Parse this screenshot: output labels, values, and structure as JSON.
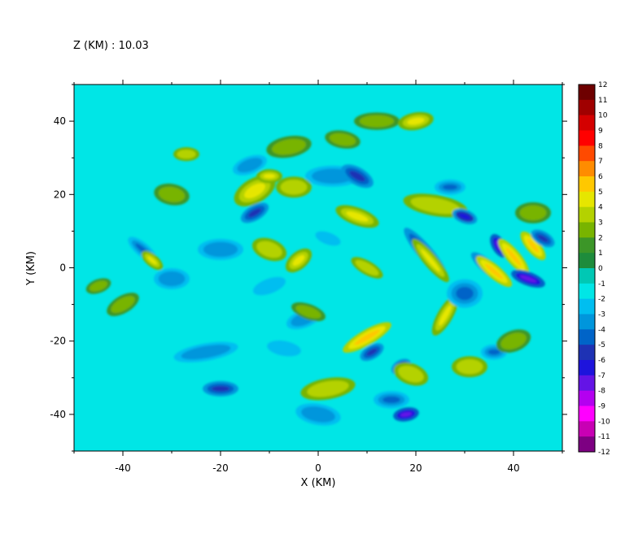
{
  "chart_data": {
    "type": "heatmap",
    "title": "Z (KM) : 10.03",
    "xlabel": "X (KM)",
    "ylabel": "Y (KM)",
    "xlim": [
      -50,
      50
    ],
    "ylim": [
      -50,
      50
    ],
    "x_ticks": [
      -40,
      -20,
      0,
      20,
      40
    ],
    "y_ticks": [
      -40,
      -20,
      0,
      20,
      40
    ],
    "x_tick_labels": [
      "-40",
      "-20",
      "0",
      "20",
      "40"
    ],
    "y_tick_labels": [
      "-40",
      "-20",
      "0",
      "20",
      "40"
    ],
    "colorbar": {
      "levels": [
        12,
        11,
        10,
        9,
        8,
        7,
        6,
        5,
        4,
        3,
        2,
        1,
        0,
        -1,
        -2,
        -3,
        -4,
        -5,
        -6,
        -7,
        -8,
        -9,
        -10,
        -11,
        -12
      ],
      "labels": [
        "12",
        "11",
        "10",
        "9",
        "8",
        "7",
        "6",
        "5",
        "4",
        "3",
        "2",
        "1",
        "0",
        "-1",
        "-2",
        "-3",
        "-4",
        "-5",
        "-6",
        "-7",
        "-8",
        "-9",
        "-10",
        "-11",
        "-12"
      ],
      "colors": [
        "#6e0000",
        "#a00000",
        "#d40000",
        "#ff0000",
        "#ff4a00",
        "#ff8c00",
        "#ffc800",
        "#e6e600",
        "#b4d200",
        "#78b400",
        "#3c9628",
        "#1e8c3c",
        "#00a078",
        "#00c8b4",
        "#00e6e6",
        "#00bef0",
        "#0096dc",
        "#0064c8",
        "#1e32b4",
        "#1e14dc",
        "#6414e6",
        "#b400f0",
        "#ff00ff",
        "#c800b4",
        "#7d0082",
        "#50005a"
      ]
    },
    "background_value": 0,
    "features": [
      {
        "x": -36,
        "y": 5,
        "rx": 3,
        "ry": 1,
        "angle": -40,
        "value": -5
      },
      {
        "x": -34,
        "y": 2,
        "rx": 2,
        "ry": 0.8,
        "angle": -40,
        "value": 5
      },
      {
        "x": -45,
        "y": -5,
        "rx": 2,
        "ry": 1,
        "angle": 20,
        "value": 3
      },
      {
        "x": -40,
        "y": -10,
        "rx": 3,
        "ry": 1.5,
        "angle": 30,
        "value": 3
      },
      {
        "x": -30,
        "y": 20,
        "rx": 3,
        "ry": 2,
        "angle": -10,
        "value": 3
      },
      {
        "x": -27,
        "y": 31,
        "rx": 2,
        "ry": 1,
        "angle": 0,
        "value": 4
      },
      {
        "x": -23,
        "y": -23,
        "rx": 6,
        "ry": 1.5,
        "angle": 10,
        "value": -4
      },
      {
        "x": -20,
        "y": 5,
        "rx": 4,
        "ry": 2,
        "angle": 0,
        "value": -4
      },
      {
        "x": -14,
        "y": 28,
        "rx": 3,
        "ry": 1.5,
        "angle": 20,
        "value": -4
      },
      {
        "x": -13,
        "y": 21,
        "rx": 4,
        "ry": 2.5,
        "angle": 30,
        "value": 5
      },
      {
        "x": -13,
        "y": 15,
        "rx": 2.5,
        "ry": 1.2,
        "angle": 30,
        "value": -6
      },
      {
        "x": -10,
        "y": 5,
        "rx": 3,
        "ry": 2,
        "angle": -20,
        "value": 4
      },
      {
        "x": -10,
        "y": -5,
        "rx": 4,
        "ry": 2,
        "angle": 20,
        "value": -3
      },
      {
        "x": -10,
        "y": 25,
        "rx": 2,
        "ry": 1,
        "angle": 0,
        "value": 5
      },
      {
        "x": -7,
        "y": -22,
        "rx": 4,
        "ry": 2,
        "angle": -10,
        "value": -3
      },
      {
        "x": -6,
        "y": 33,
        "rx": 4,
        "ry": 2,
        "angle": 10,
        "value": 3
      },
      {
        "x": -5,
        "y": 22,
        "rx": 3,
        "ry": 2,
        "angle": 0,
        "value": 4
      },
      {
        "x": -4,
        "y": 2,
        "rx": 2.5,
        "ry": 1.5,
        "angle": 40,
        "value": 5
      },
      {
        "x": -3,
        "y": -14,
        "rx": 3,
        "ry": 1.5,
        "angle": 20,
        "value": -4
      },
      {
        "x": 0,
        "y": -40,
        "rx": 4,
        "ry": 2,
        "angle": -10,
        "value": -4
      },
      {
        "x": 2,
        "y": -33,
        "rx": 5,
        "ry": 2,
        "angle": 10,
        "value": 4
      },
      {
        "x": 3,
        "y": 25,
        "rx": 5,
        "ry": 2,
        "angle": 0,
        "value": -4
      },
      {
        "x": 5,
        "y": 35,
        "rx": 3,
        "ry": 1.5,
        "angle": -10,
        "value": 3
      },
      {
        "x": 8,
        "y": 25,
        "rx": 3,
        "ry": 1.5,
        "angle": -30,
        "value": -6
      },
      {
        "x": 8,
        "y": 14,
        "rx": 4,
        "ry": 1.5,
        "angle": -20,
        "value": 5
      },
      {
        "x": 10,
        "y": -19,
        "rx": 5,
        "ry": 1.2,
        "angle": 30,
        "value": 6
      },
      {
        "x": 11,
        "y": -23,
        "rx": 2,
        "ry": 1,
        "angle": 30,
        "value": -6
      },
      {
        "x": 10,
        "y": 0,
        "rx": 3,
        "ry": 1,
        "angle": -30,
        "value": 4
      },
      {
        "x": 12,
        "y": 40,
        "rx": 4,
        "ry": 1.5,
        "angle": 0,
        "value": 3
      },
      {
        "x": 15,
        "y": -36,
        "rx": 3,
        "ry": 1.5,
        "angle": 0,
        "value": -5
      },
      {
        "x": 17,
        "y": -27,
        "rx": 1.5,
        "ry": 1,
        "angle": 30,
        "value": -7
      },
      {
        "x": 18,
        "y": -40,
        "rx": 2,
        "ry": 1,
        "angle": 10,
        "value": -8
      },
      {
        "x": 19,
        "y": -29,
        "rx": 3,
        "ry": 2,
        "angle": -20,
        "value": 4
      },
      {
        "x": 20,
        "y": 40,
        "rx": 3,
        "ry": 1.5,
        "angle": 10,
        "value": 5
      },
      {
        "x": 22,
        "y": 4,
        "rx": 6,
        "ry": 1.2,
        "angle": -50,
        "value": -6
      },
      {
        "x": 23,
        "y": 2,
        "rx": 5,
        "ry": 1,
        "angle": -50,
        "value": 5
      },
      {
        "x": 24,
        "y": 17,
        "rx": 6,
        "ry": 2,
        "angle": -10,
        "value": 4
      },
      {
        "x": 26,
        "y": -13,
        "rx": 4,
        "ry": 1.2,
        "angle": 60,
        "value": 5
      },
      {
        "x": 27,
        "y": 22,
        "rx": 2.5,
        "ry": 1.2,
        "angle": 0,
        "value": -5
      },
      {
        "x": 30,
        "y": 14,
        "rx": 2,
        "ry": 1,
        "angle": -20,
        "value": -7
      },
      {
        "x": 31,
        "y": -27,
        "rx": 3,
        "ry": 2,
        "angle": 0,
        "value": 4
      },
      {
        "x": 35,
        "y": 0,
        "rx": 4,
        "ry": 1,
        "angle": -40,
        "value": -7
      },
      {
        "x": 36,
        "y": -1,
        "rx": 4,
        "ry": 1,
        "angle": -40,
        "value": 6
      },
      {
        "x": 37,
        "y": 6,
        "rx": 2,
        "ry": 1,
        "angle": -60,
        "value": -8
      },
      {
        "x": 36,
        "y": -23,
        "rx": 2,
        "ry": 1.2,
        "angle": 0,
        "value": -5
      },
      {
        "x": 40,
        "y": 3,
        "rx": 4,
        "ry": 1,
        "angle": -50,
        "value": 6
      },
      {
        "x": 43,
        "y": -3,
        "rx": 3,
        "ry": 1,
        "angle": -20,
        "value": -8
      },
      {
        "x": 44,
        "y": 6,
        "rx": 3,
        "ry": 1,
        "angle": -50,
        "value": 6
      },
      {
        "x": 46,
        "y": 8,
        "rx": 2,
        "ry": 1,
        "angle": -30,
        "value": -6
      },
      {
        "x": 40,
        "y": -20,
        "rx": 3,
        "ry": 2,
        "angle": 20,
        "value": 3
      },
      {
        "x": -30,
        "y": -3,
        "rx": 3,
        "ry": 2,
        "angle": 0,
        "value": -4
      },
      {
        "x": 2,
        "y": 8,
        "rx": 3,
        "ry": 1.5,
        "angle": -20,
        "value": -3
      },
      {
        "x": -20,
        "y": -33,
        "rx": 3,
        "ry": 1.2,
        "angle": 0,
        "value": -6
      },
      {
        "x": 44,
        "y": 15,
        "rx": 3,
        "ry": 2,
        "angle": 0,
        "value": 3
      },
      {
        "x": -2,
        "y": -12,
        "rx": 3,
        "ry": 1.2,
        "angle": -20,
        "value": 3
      },
      {
        "x": 30,
        "y": -7,
        "rx": 3,
        "ry": 3,
        "angle": 0,
        "value": -5
      }
    ]
  }
}
